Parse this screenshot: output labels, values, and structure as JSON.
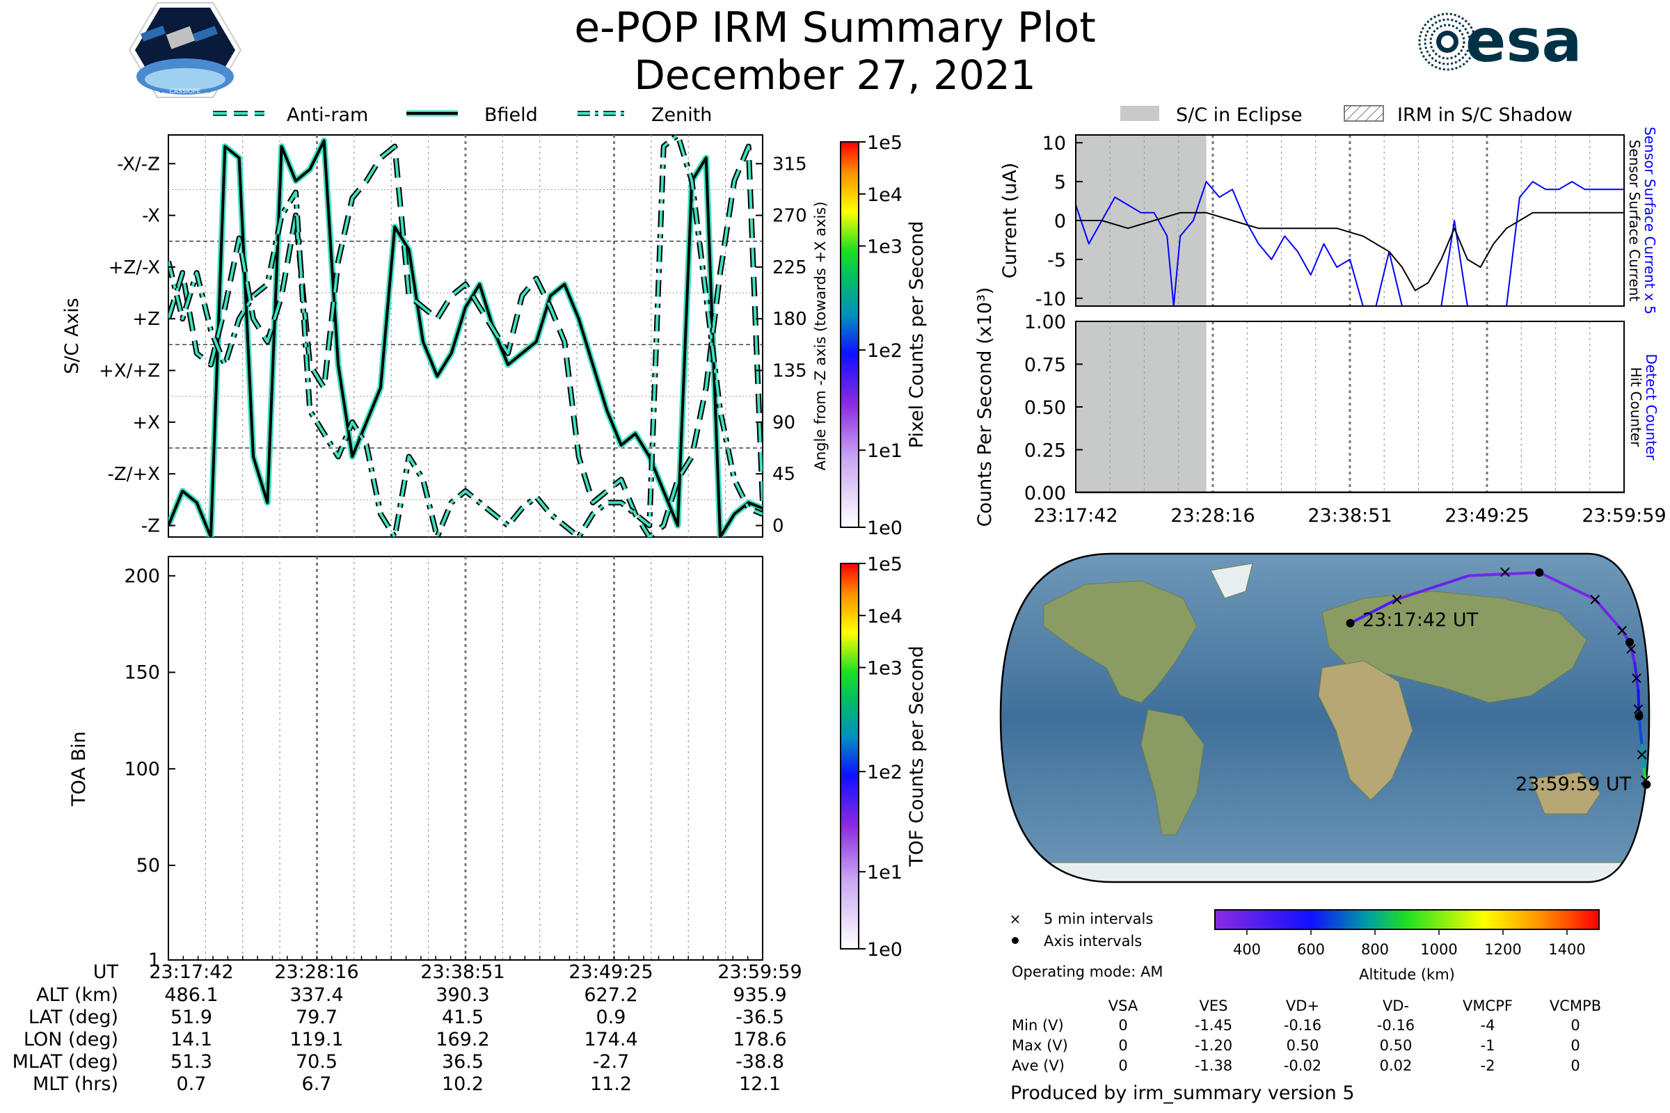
{
  "header": {
    "title": "e-POP IRM Summary Plot",
    "date": "December 27, 2021",
    "left_logo": {
      "name": "CASSIOPE",
      "icon": "cassiope-mission-badge-icon"
    },
    "right_logo": {
      "name": "esa",
      "icon": "esa-logo-icon",
      "color": "#003247"
    }
  },
  "colors": {
    "track_line": "#000000",
    "track_halo": "#40E0C0",
    "sensor_current": "#0000FF",
    "eclipse": "#c8cac9"
  },
  "time_ticks": [
    "23:17:42",
    "23:28:16",
    "23:38:51",
    "23:49:25",
    "23:59:59"
  ],
  "chart_data": [
    {
      "id": "axis_panel",
      "type": "line",
      "legend": [
        "Anti-ram",
        "Bfield",
        "Zenith"
      ],
      "legend_placement": "top",
      "ylabel": "S/C Axis",
      "y2label": "Angle from -Z axis (towards +X axis)",
      "ylim": [
        -10,
        340
      ],
      "ytick_labels": [
        "-X/-Z",
        "-X",
        "+Z/-X",
        "+Z",
        "+X/+Z",
        "+X",
        "-Z/+X",
        "-Z"
      ],
      "ytick_values": [
        315,
        270,
        225,
        180,
        135,
        90,
        45,
        0
      ],
      "y2tick_labels": [
        "315",
        "270",
        "225",
        "180",
        "135",
        "90",
        "45",
        "0"
      ],
      "colorbar": {
        "label": "Pixel Counts per Second",
        "ticks": [
          "1e5",
          "1e4",
          "1e3",
          "1e2",
          "1e1",
          "1e0"
        ]
      },
      "series": [
        {
          "name": "Bfield",
          "style": "solid",
          "x": [
            0,
            1,
            2,
            3,
            4,
            5,
            6,
            7,
            8,
            9,
            10,
            11,
            12,
            13,
            14,
            15,
            16,
            17,
            18,
            19,
            20,
            21,
            22,
            23,
            24,
            25,
            26,
            27,
            28,
            29,
            30,
            31,
            32,
            33,
            34,
            35,
            36,
            37,
            38,
            39,
            40,
            41,
            42
          ],
          "y": [
            0,
            30,
            20,
            -10,
            330,
            320,
            60,
            20,
            330,
            300,
            310,
            335,
            140,
            60,
            90,
            120,
            260,
            240,
            160,
            130,
            150,
            190,
            210,
            170,
            140,
            150,
            160,
            200,
            210,
            180,
            140,
            100,
            70,
            80,
            60,
            30,
            0,
            300,
            320,
            -10,
            10,
            20,
            15
          ]
        },
        {
          "name": "Anti-ram",
          "style": "dashed",
          "x": [
            0,
            1,
            2,
            3,
            4,
            5,
            6,
            7,
            8,
            9,
            10,
            11,
            12,
            13,
            14,
            15,
            16,
            17,
            18,
            19,
            20,
            21,
            22,
            23,
            24,
            25,
            26,
            27,
            28,
            29,
            30,
            31,
            32,
            33,
            34,
            35,
            36,
            37,
            38,
            39,
            40,
            41,
            42
          ],
          "y": [
            180,
            220,
            150,
            140,
            190,
            250,
            180,
            160,
            200,
            270,
            140,
            120,
            230,
            285,
            300,
            320,
            330,
            200,
            190,
            180,
            200,
            210,
            190,
            170,
            150,
            200,
            215,
            190,
            160,
            60,
            20,
            30,
            40,
            10,
            -10,
            0,
            40,
            60,
            120,
            220,
            300,
            330,
            20
          ]
        },
        {
          "name": "Zenith",
          "style": "dashdot",
          "x": [
            0,
            1,
            2,
            3,
            4,
            5,
            6,
            7,
            8,
            9,
            10,
            11,
            12,
            13,
            14,
            15,
            16,
            17,
            18,
            19,
            20,
            21,
            22,
            23,
            24,
            25,
            26,
            27,
            28,
            29,
            30,
            31,
            32,
            33,
            34,
            35,
            36,
            37,
            38,
            39,
            40,
            41,
            42
          ],
          "y": [
            230,
            180,
            220,
            170,
            140,
            180,
            200,
            210,
            270,
            290,
            100,
            80,
            60,
            90,
            70,
            10,
            -10,
            60,
            40,
            -10,
            20,
            30,
            20,
            10,
            0,
            15,
            25,
            10,
            0,
            -10,
            10,
            20,
            20,
            10,
            0,
            330,
            340,
            300,
            200,
            100,
            40,
            15,
            10
          ]
        }
      ]
    },
    {
      "id": "tof_panel",
      "type": "heatmap",
      "ylabel": "TOA Bin",
      "ylim": [
        1,
        210
      ],
      "ytick_labels": [
        "200",
        "150",
        "100",
        "50",
        "1"
      ],
      "ytick_values": [
        200,
        150,
        100,
        50,
        1
      ],
      "colorbar": {
        "label": "TOF Counts per Second",
        "ticks": [
          "1e5",
          "1e4",
          "1e3",
          "1e2",
          "1e1",
          "1e0"
        ]
      },
      "values": []
    },
    {
      "id": "current_panel",
      "type": "line",
      "legend": [
        "S/C in Eclipse",
        "IRM in S/C Shadow"
      ],
      "legend_placement": "top",
      "ylabel": "Current (uA)",
      "y2label_blue": "Sensor Surface Current x 5",
      "y2label_black": "Sensor Surface Current",
      "ylim": [
        -11,
        11
      ],
      "ytick_labels": [
        "10",
        "5",
        "0",
        "-5",
        "-10"
      ],
      "ytick_values": [
        10,
        5,
        0,
        -5,
        -10
      ],
      "eclipse_x": [
        0,
        10
      ],
      "series": [
        {
          "name": "Sensor Surface Current x 5",
          "color": "#0000FF",
          "x": [
            0,
            1,
            2,
            3,
            4,
            5,
            6,
            7,
            7.5,
            8,
            9,
            10,
            11,
            12,
            13,
            14,
            15,
            16,
            17,
            18,
            19,
            20,
            21,
            22,
            23,
            24,
            25,
            26,
            27,
            28,
            29,
            30,
            31,
            32,
            33,
            34,
            35,
            36,
            37,
            38,
            39,
            40,
            41,
            42
          ],
          "y": [
            2,
            -3,
            0,
            3,
            2,
            1,
            1,
            -2,
            -11,
            -2,
            0,
            5,
            3,
            4,
            0,
            -3,
            -5,
            -2,
            -4,
            -7,
            -3,
            -6,
            -5,
            -11,
            -11,
            -4,
            -11,
            -11,
            -11,
            -11,
            0,
            -11,
            -11,
            -11,
            -11,
            3,
            5,
            4,
            4,
            5,
            4,
            4,
            4,
            4
          ]
        },
        {
          "name": "Sensor Surface Current",
          "color": "#000000",
          "x": [
            0,
            2,
            4,
            6,
            8,
            10,
            12,
            14,
            16,
            18,
            20,
            22,
            24,
            25,
            26,
            27,
            28,
            29,
            30,
            31,
            32,
            33,
            34,
            35,
            36,
            38,
            40,
            42
          ],
          "y": [
            0,
            0,
            -1,
            0,
            1,
            1,
            0,
            -1,
            -1,
            -1,
            -1,
            -2,
            -4,
            -6,
            -9,
            -8,
            -5,
            -1,
            -5,
            -6,
            -3,
            -1,
            0,
            1,
            1,
            1,
            1,
            1
          ]
        }
      ]
    },
    {
      "id": "counts_panel",
      "type": "line",
      "ylabel": "Counts Per Second (x10³)",
      "y2label_blue": "Detect Counter",
      "y2label_black": "Hit Counter",
      "ylim": [
        0,
        1
      ],
      "ytick_labels": [
        "1.00",
        "0.75",
        "0.50",
        "0.25",
        "0.00"
      ],
      "ytick_values": [
        1.0,
        0.75,
        0.5,
        0.25,
        0.0
      ],
      "eclipse_x": [
        0,
        10
      ],
      "series": [
        {
          "name": "Detect Counter",
          "color": "#0000FF",
          "x": [
            0,
            42
          ],
          "y": [
            0,
            0
          ]
        },
        {
          "name": "Hit Counter",
          "color": "#000000",
          "x": [
            0,
            42
          ],
          "y": [
            0,
            0
          ]
        }
      ]
    }
  ],
  "map": {
    "start_label": "23:17:42 UT",
    "end_label": "23:59:59 UT",
    "track_lonlat": [
      [
        14.1,
        51.9
      ],
      [
        40,
        65
      ],
      [
        80,
        78
      ],
      [
        119.1,
        79.7
      ],
      [
        150,
        65
      ],
      [
        165,
        48
      ],
      [
        169.2,
        41.5
      ],
      [
        172,
        30
      ],
      [
        174,
        15
      ],
      [
        174.4,
        0.9
      ],
      [
        176,
        -15
      ],
      [
        177,
        -28
      ],
      [
        178.6,
        -36.5
      ]
    ],
    "track_altitude_km": [
      486,
      420,
      360,
      337,
      345,
      370,
      390,
      450,
      540,
      627,
      720,
      830,
      936
    ],
    "five_min_marks": [
      [
        40,
        65
      ],
      [
        100,
        80
      ],
      [
        150,
        65
      ],
      [
        165,
        48
      ],
      [
        170,
        38
      ],
      [
        173,
        22
      ],
      [
        174,
        5
      ],
      [
        176,
        -20
      ],
      [
        178,
        -34
      ]
    ],
    "axis_interval_marks": [
      [
        14.1,
        51.9
      ],
      [
        119.1,
        79.7
      ],
      [
        169.2,
        41.5
      ],
      [
        174.4,
        0.9
      ],
      [
        178.6,
        -36.5
      ]
    ],
    "legend_5min": "5 min intervals",
    "legend_axis": "Axis intervals",
    "operating_mode": "Operating mode: AM",
    "colorbar_label": "Altitude (km)",
    "colorbar_ticks": [
      "400",
      "600",
      "800",
      "1000",
      "1200",
      "1400"
    ],
    "colorbar_range": [
      300,
      1500
    ]
  },
  "ephemeris": {
    "labels": [
      "UT",
      "ALT (km)",
      "LAT (deg)",
      "LON (deg)",
      "MLAT (deg)",
      "MLT (hrs)"
    ],
    "columns": [
      [
        "23:17:42",
        "486.1",
        "51.9",
        "14.1",
        "51.3",
        "0.7"
      ],
      [
        "23:28:16",
        "337.4",
        "79.7",
        "119.1",
        "70.5",
        "6.7"
      ],
      [
        "23:38:51",
        "390.3",
        "41.5",
        "169.2",
        "36.5",
        "10.2"
      ],
      [
        "23:49:25",
        "627.2",
        "0.9",
        "174.4",
        "-2.7",
        "11.2"
      ],
      [
        "23:59:59",
        "935.9",
        "-36.5",
        "178.6",
        "-38.8",
        "12.1"
      ]
    ]
  },
  "voltages": {
    "headers": [
      "VSA",
      "VES",
      "VD+",
      "VD-",
      "VMCPF",
      "VCMPB"
    ],
    "rows": [
      {
        "label": "Min (V)",
        "values": [
          "0",
          "-1.45",
          "-0.16",
          "-0.16",
          "-4",
          "0"
        ]
      },
      {
        "label": "Max (V)",
        "values": [
          "0",
          "-1.20",
          "0.50",
          "0.50",
          "-1",
          "0"
        ]
      },
      {
        "label": "Ave (V)",
        "values": [
          "0",
          "-1.38",
          "-0.02",
          "0.02",
          "-2",
          "0"
        ]
      }
    ]
  },
  "footer": "Produced by irm_summary version 5"
}
